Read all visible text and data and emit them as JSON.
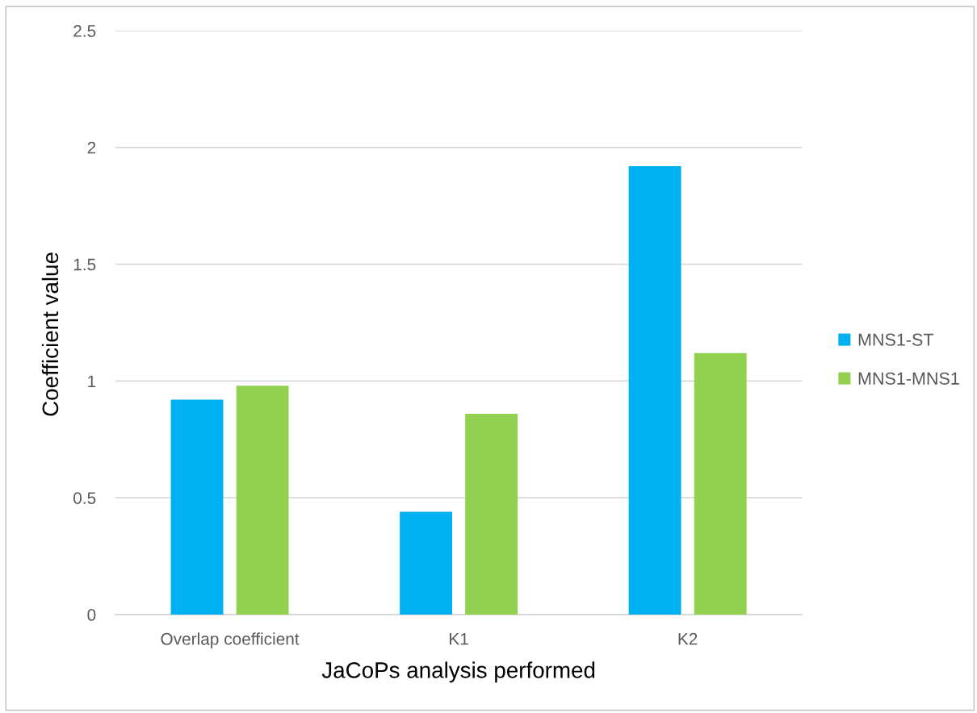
{
  "chart_data": {
    "type": "bar",
    "xlabel": "JaCoPs analysis performed",
    "ylabel": "Coefficient value",
    "categories": [
      "Overlap coefficient",
      "K1",
      "K2"
    ],
    "series": [
      {
        "name": "MNS1-ST",
        "color": "#00b0f0",
        "values": [
          0.92,
          0.44,
          1.92
        ]
      },
      {
        "name": "MNS1-MNS1",
        "color": "#92d050",
        "values": [
          0.98,
          0.86,
          1.12
        ]
      }
    ],
    "ylim": [
      0,
      2.5
    ],
    "yticks": [
      0,
      0.5,
      1,
      1.5,
      2,
      2.5
    ],
    "grid": "y",
    "legend": "right"
  }
}
